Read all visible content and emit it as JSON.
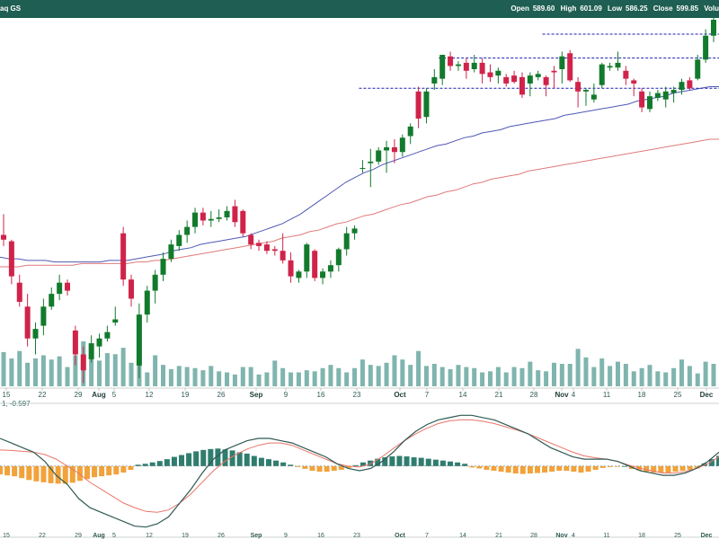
{
  "header": {
    "ticker": "aq GS",
    "open_label": "Open",
    "open_value": "589.60",
    "high_label": "High",
    "high_value": "601.09",
    "low_label": "Low",
    "low_value": "586.25",
    "close_label": "Close",
    "close_value": "599.85",
    "volume_label": "Volu"
  },
  "colors": {
    "header_bg": "#1f5e52",
    "up_candle": "#127a2c",
    "down_candle": "#d0234a",
    "ma_short": "#5057b5",
    "ma_long": "#e07a7a",
    "volume": "#7fb5ae",
    "macd_line": "#2f5a55",
    "signal_line": "#e8766a",
    "hist_positive": "#2f7d6f",
    "hist_negative": "#f2a23a",
    "resistance": "#1a1fb0"
  },
  "chart_data": [
    {
      "type": "candlestick",
      "title": "",
      "x_tick_labels": [
        "15",
        "22",
        "29",
        "Aug",
        "5",
        "12",
        "19",
        "26",
        "Sep",
        "9",
        "16",
        "23",
        "Oct",
        "7",
        "14",
        "21",
        "28",
        "Nov",
        "4",
        "11",
        "18",
        "25",
        "Dec"
      ],
      "ylim": [
        380,
        610
      ],
      "candles": [
        [
          475,
          488,
          468,
          472
        ],
        [
          471,
          472,
          444,
          449
        ],
        [
          445,
          450,
          430,
          433
        ],
        [
          430,
          438,
          405,
          410
        ],
        [
          410,
          420,
          400,
          416
        ],
        [
          418,
          435,
          412,
          430
        ],
        [
          430,
          442,
          428,
          438
        ],
        [
          438,
          450,
          434,
          445
        ],
        [
          445,
          447,
          437,
          440
        ],
        [
          415,
          418,
          393,
          400
        ],
        [
          400,
          405,
          382,
          390
        ],
        [
          397,
          412,
          395,
          407
        ],
        [
          405,
          413,
          398,
          410
        ],
        [
          410,
          418,
          408,
          414
        ],
        [
          420,
          430,
          418,
          422
        ],
        [
          476,
          480,
          443,
          447
        ],
        [
          447,
          450,
          430,
          435
        ],
        [
          393,
          432,
          385,
          425
        ],
        [
          425,
          443,
          420,
          440
        ],
        [
          440,
          453,
          432,
          450
        ],
        [
          450,
          464,
          446,
          460
        ],
        [
          460,
          472,
          458,
          469
        ],
        [
          468,
          478,
          465,
          475
        ],
        [
          475,
          484,
          470,
          480
        ],
        [
          480,
          492,
          476,
          489
        ],
        [
          489,
          492,
          481,
          484
        ],
        [
          484,
          490,
          480,
          485
        ],
        [
          485,
          491,
          483,
          486
        ],
        [
          486,
          493,
          484,
          490
        ],
        [
          493,
          497,
          480,
          483
        ],
        [
          490,
          491,
          474,
          476
        ],
        [
          475,
          476,
          466,
          469
        ],
        [
          470,
          472,
          465,
          468
        ],
        [
          469,
          471,
          463,
          465
        ],
        [
          466,
          468,
          462,
          465
        ],
        [
          465,
          476,
          457,
          459
        ],
        [
          459,
          464,
          445,
          449
        ],
        [
          448,
          453,
          445,
          452
        ],
        [
          452,
          470,
          448,
          469
        ],
        [
          465,
          466,
          446,
          448
        ],
        [
          448,
          454,
          444,
          452
        ],
        [
          452,
          459,
          448,
          456
        ],
        [
          456,
          467,
          452,
          466
        ],
        [
          466,
          480,
          462,
          476
        ],
        [
          476,
          481,
          472,
          479
        ],
        [
          517,
          522,
          514,
          517
        ],
        [
          520,
          529,
          505,
          521
        ],
        [
          521,
          530,
          519,
          528
        ],
        [
          528,
          534,
          514,
          530
        ],
        [
          530,
          535,
          520,
          527
        ],
        [
          527,
          538,
          524,
          536
        ],
        [
          537,
          545,
          532,
          543
        ],
        [
          565,
          568,
          542,
          548
        ],
        [
          549,
          567,
          545,
          565
        ],
        [
          570,
          579,
          566,
          574
        ],
        [
          573,
          588,
          569,
          588
        ],
        [
          587,
          590,
          578,
          581
        ],
        [
          581,
          584,
          578,
          582
        ],
        [
          583,
          586,
          573,
          578
        ],
        [
          579,
          588,
          577,
          583
        ],
        [
          583,
          586,
          570,
          576
        ],
        [
          577,
          582,
          571,
          574
        ],
        [
          575,
          580,
          570,
          578
        ],
        [
          574,
          576,
          568,
          570
        ],
        [
          575,
          578,
          570,
          571
        ],
        [
          574,
          577,
          561,
          563
        ],
        [
          570,
          577,
          562,
          575
        ],
        [
          574,
          578,
          572,
          576
        ],
        [
          574,
          575,
          562,
          569
        ],
        [
          578,
          581,
          567,
          577
        ],
        [
          579,
          590,
          570,
          587
        ],
        [
          589,
          591,
          571,
          572
        ],
        [
          571,
          574,
          555,
          565
        ],
        [
          565,
          567,
          556,
          566
        ],
        [
          560,
          570,
          558,
          563
        ],
        [
          569,
          583,
          567,
          582
        ],
        [
          580,
          583,
          578,
          581
        ],
        [
          580,
          590,
          578,
          583
        ],
        [
          578,
          581,
          569,
          573
        ],
        [
          572,
          573,
          562,
          570
        ],
        [
          565,
          567,
          552,
          555
        ],
        [
          554,
          565,
          552,
          562
        ],
        [
          561,
          566,
          559,
          564
        ],
        [
          560,
          568,
          555,
          565
        ],
        [
          564,
          568,
          558,
          566
        ],
        [
          566,
          573,
          563,
          571
        ],
        [
          572,
          574,
          566,
          567
        ],
        [
          573,
          588,
          572,
          585
        ],
        [
          585,
          604,
          583,
          600
        ],
        [
          600,
          612,
          596,
          610
        ]
      ],
      "volume": [
        320,
        260,
        330,
        220,
        260,
        290,
        250,
        280,
        180,
        290,
        420,
        300,
        240,
        310,
        300,
        360,
        220,
        340,
        130,
        290,
        200,
        160,
        190,
        180,
        170,
        150,
        190,
        140,
        130,
        110,
        180,
        180,
        110,
        130,
        240,
        170,
        130,
        130,
        150,
        140,
        170,
        200,
        170,
        130,
        170,
        250,
        200,
        190,
        220,
        290,
        250,
        200,
        330,
        190,
        210,
        180,
        160,
        200,
        180,
        170,
        130,
        140,
        180,
        130,
        180,
        170,
        230,
        150,
        140,
        220,
        210,
        210,
        350,
        270,
        180,
        260,
        190,
        230,
        210,
        140,
        170,
        200,
        140,
        130,
        170,
        250,
        190,
        120,
        230,
        210,
        200,
        260
      ],
      "ma_short": [
        461,
        460,
        460,
        459,
        459,
        459,
        458,
        458,
        458,
        458,
        458,
        458,
        459,
        459,
        459,
        460,
        461,
        462,
        463,
        465,
        466,
        467,
        469,
        470,
        471,
        472,
        473,
        474,
        476,
        478,
        480,
        482,
        485,
        488,
        492,
        496,
        500,
        504,
        508,
        511,
        514,
        516,
        519,
        521,
        523,
        525,
        527,
        529,
        531,
        532,
        534,
        536,
        537,
        539,
        540,
        541,
        543,
        544,
        545,
        546,
        547,
        548,
        550,
        551,
        552,
        553,
        554,
        555,
        556,
        557,
        559,
        560,
        561,
        562,
        564,
        565,
        566,
        567,
        568,
        568
      ],
      "ma_long": [
        455,
        455,
        455,
        456,
        456,
        456,
        456,
        456,
        456,
        457,
        457,
        457,
        457,
        457,
        457,
        458,
        458,
        459,
        459,
        460,
        461,
        462,
        463,
        464,
        465,
        466,
        467,
        468,
        469,
        470,
        471,
        473,
        474,
        475,
        477,
        478,
        480,
        482,
        483,
        485,
        487,
        488,
        490,
        492,
        494,
        495,
        497,
        499,
        500,
        502,
        503,
        505,
        507,
        508,
        510,
        511,
        512,
        513,
        515,
        516,
        517,
        518,
        519,
        520,
        521,
        522,
        523,
        524,
        525,
        526,
        527,
        528,
        529,
        530,
        531,
        532,
        533,
        534,
        535,
        535
      ],
      "resistance_levels": [
        {
          "value": 567,
          "start_index": 45
        },
        {
          "value": 586,
          "start_index": 55
        },
        {
          "value": 601,
          "start_index": 68
        }
      ]
    },
    {
      "type": "line",
      "title": "",
      "indicator_label": "1, -0.597",
      "x_tick_labels": [
        "15",
        "22",
        "29",
        "Aug",
        "5",
        "12",
        "19",
        "26",
        "Sep",
        "9",
        "16",
        "23",
        "Oct",
        "7",
        "14",
        "21",
        "28",
        "Nov",
        "4",
        "11",
        "18",
        "25",
        "Dec"
      ],
      "ylim": [
        -1.5,
        1.3
      ],
      "zero_line": true,
      "macd": [
        0.6,
        0.5,
        0.4,
        0.3,
        0.1,
        -0.2,
        -0.4,
        -0.7,
        -0.9,
        -1.0,
        -1.1,
        -1.2,
        -1.3,
        -1.32,
        -1.25,
        -1.1,
        -0.8,
        -0.5,
        -0.15,
        0.15,
        0.35,
        0.45,
        0.55,
        0.6,
        0.6,
        0.55,
        0.5,
        0.4,
        0.3,
        0.2,
        0.05,
        -0.05,
        -0.1,
        -0.05,
        0.1,
        0.3,
        0.55,
        0.75,
        0.9,
        1.0,
        1.05,
        1.1,
        1.1,
        1.05,
        1.0,
        0.9,
        0.8,
        0.7,
        0.55,
        0.4,
        0.3,
        0.2,
        0.15,
        0.15,
        0.15,
        0.1,
        0.0,
        -0.1,
        -0.15,
        -0.2,
        -0.2,
        -0.15,
        -0.05,
        0.1,
        0.3
      ],
      "signal": [
        0.35,
        0.34,
        0.32,
        0.3,
        0.25,
        0.15,
        0.0,
        -0.15,
        -0.35,
        -0.5,
        -0.65,
        -0.8,
        -0.9,
        -0.98,
        -1.0,
        -0.95,
        -0.8,
        -0.6,
        -0.35,
        -0.1,
        0.1,
        0.25,
        0.37,
        0.45,
        0.5,
        0.5,
        0.45,
        0.35,
        0.25,
        0.15,
        0.05,
        0.0,
        -0.02,
        0.05,
        0.2,
        0.38,
        0.55,
        0.7,
        0.82,
        0.92,
        0.98,
        1.0,
        1.0,
        0.97,
        0.92,
        0.85,
        0.78,
        0.7,
        0.6,
        0.5,
        0.4,
        0.3,
        0.22,
        0.18,
        0.15,
        0.1,
        0.02,
        -0.05,
        -0.1,
        -0.15,
        -0.15,
        -0.12,
        -0.05,
        0.05,
        0.2
      ],
      "histogram": [
        -0.18,
        -0.2,
        -0.22,
        -0.26,
        -0.3,
        -0.33,
        -0.35,
        -0.37,
        -0.38,
        -0.38,
        -0.36,
        -0.32,
        -0.28,
        -0.24,
        -0.22,
        -0.2,
        -0.18,
        -0.14,
        -0.08,
        0.03,
        0.05,
        0.08,
        0.11,
        0.15,
        0.2,
        0.24,
        0.28,
        0.32,
        0.35,
        0.37,
        0.38,
        0.36,
        0.34,
        0.3,
        0.27,
        0.22,
        0.18,
        0.15,
        0.12,
        0.08,
        0.03,
        -0.02,
        -0.06,
        -0.1,
        -0.12,
        -0.12,
        -0.1,
        -0.08,
        -0.04,
        0.02,
        0.08,
        0.12,
        0.16,
        0.19,
        0.21,
        0.22,
        0.21,
        0.19,
        0.18,
        0.16,
        0.14,
        0.12,
        0.1,
        0.08,
        0.05,
        -0.03,
        -0.05,
        -0.08,
        -0.1,
        -0.12,
        -0.14,
        -0.16,
        -0.17,
        -0.16,
        -0.15,
        -0.14,
        -0.12,
        -0.1,
        -0.1,
        -0.12,
        -0.14,
        -0.12,
        -0.08,
        -0.04,
        -0.02,
        -0.01,
        0.0,
        -0.06,
        -0.09,
        -0.12,
        -0.14,
        -0.14,
        -0.14,
        -0.12,
        -0.1,
        -0.08,
        -0.05,
        0.06,
        0.15,
        0.22
      ]
    }
  ]
}
